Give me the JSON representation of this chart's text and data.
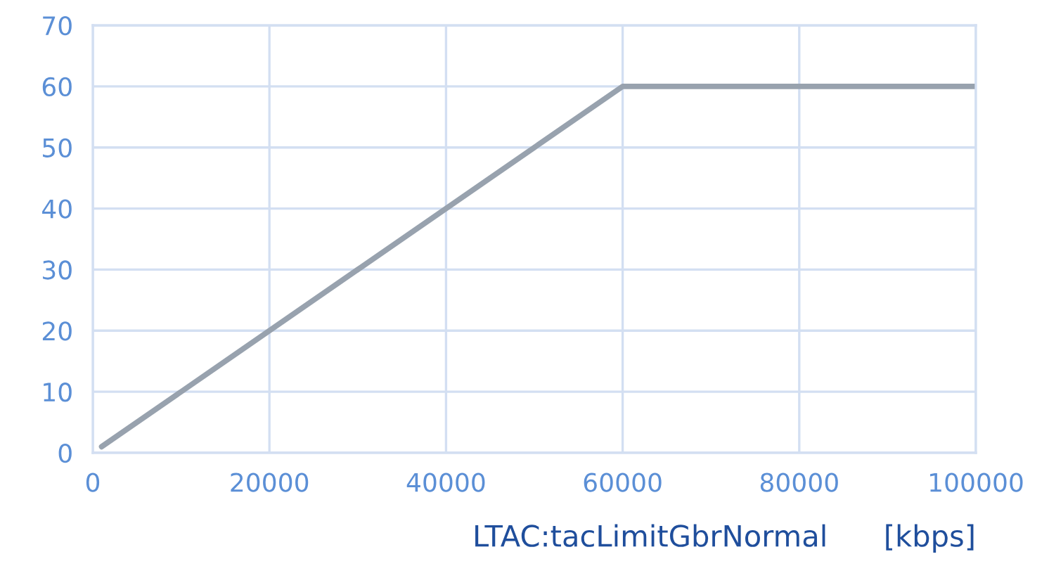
{
  "chart_data": {
    "type": "line",
    "xlabel": "LTAC:tacLimitGbrNormal      [kbps]",
    "x": [
      1000,
      60000,
      100000
    ],
    "series": [
      {
        "color": "#98a2ae",
        "values": [
          1,
          60,
          60
        ]
      }
    ],
    "xlim": [
      0,
      100000
    ],
    "xticks": [
      0,
      20000,
      40000,
      60000,
      80000,
      100000
    ],
    "ylim": [
      0,
      70
    ],
    "yticks": [
      0,
      10,
      20,
      30,
      40,
      50,
      60,
      70
    ],
    "grid": true,
    "line_style": "solid",
    "marker": "none"
  }
}
